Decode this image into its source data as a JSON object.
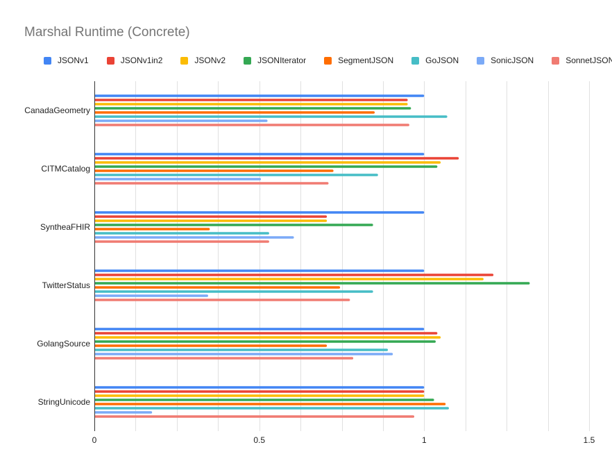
{
  "chart_data": {
    "type": "bar",
    "orientation": "horizontal",
    "title": "Marshal Runtime (Concrete)",
    "xlabel": "",
    "ylabel": "",
    "xlim": [
      0,
      1.5
    ],
    "x_ticks": [
      "0",
      "0.5",
      "1",
      "1.5"
    ],
    "grid": true,
    "legend_position": "top",
    "categories": [
      "CanadaGeometry",
      "CITMCatalog",
      "SyntheaFHIR",
      "TwitterStatus",
      "GolangSource",
      "StringUnicode"
    ],
    "series": [
      {
        "name": "JSONv1",
        "color": "#4285f4",
        "values": [
          1.0,
          1.0,
          1.0,
          1.0,
          1.0,
          1.0
        ]
      },
      {
        "name": "JSONv1in2",
        "color": "#ea4335",
        "values": [
          0.95,
          1.105,
          0.705,
          1.21,
          1.04,
          1.0
        ]
      },
      {
        "name": "JSONv2",
        "color": "#fbbc04",
        "values": [
          0.95,
          1.05,
          0.705,
          1.18,
          1.05,
          1.0
        ]
      },
      {
        "name": "JSONIterator",
        "color": "#34a853",
        "values": [
          0.96,
          1.04,
          0.845,
          1.32,
          1.035,
          1.03
        ]
      },
      {
        "name": "SegmentJSON",
        "color": "#ff6d01",
        "values": [
          0.85,
          0.725,
          0.35,
          0.745,
          0.705,
          1.065
        ]
      },
      {
        "name": "GoJSON",
        "color": "#46bdc6",
        "values": [
          1.07,
          0.86,
          0.53,
          0.845,
          0.89,
          1.075
        ]
      },
      {
        "name": "SonicJSON",
        "color": "#7baaf7",
        "values": [
          0.525,
          0.505,
          0.605,
          0.345,
          0.905,
          0.175
        ]
      },
      {
        "name": "SonnetJSON",
        "color": "#f07b72",
        "values": [
          0.955,
          0.71,
          0.53,
          0.775,
          0.785,
          0.97
        ]
      }
    ]
  }
}
